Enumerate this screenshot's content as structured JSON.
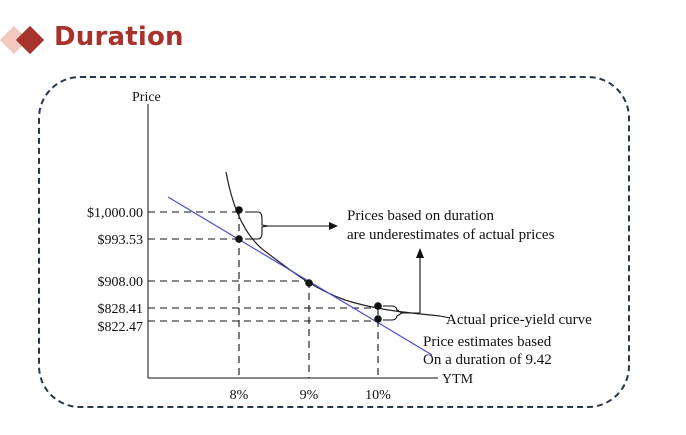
{
  "slide": {
    "title": "Duration"
  },
  "chart_data": {
    "type": "line",
    "ylabel": "Price",
    "xlabel": "YTM",
    "x_ticks": [
      "8%",
      "9%",
      "10%"
    ],
    "y_ticks": [
      "$1,000.00",
      "$993.53",
      "$908.00",
      "$828.41",
      "$822.47"
    ],
    "ylim": [
      790,
      1050
    ],
    "xlim": [
      6.8,
      11.2
    ],
    "series": [
      {
        "name": "Actual price-yield curve",
        "points": [
          [
            8,
            1000.0
          ],
          [
            9,
            908.0
          ],
          [
            10,
            828.41
          ]
        ]
      },
      {
        "name": "Price estimates based On a duration of 9.42",
        "points": [
          [
            8,
            993.53
          ],
          [
            9,
            908.0
          ],
          [
            10,
            822.47
          ]
        ]
      }
    ],
    "annotations": [
      "Prices based on duration",
      "are underestimates of actual prices",
      "Actual price-yield curve",
      "Price estimates based",
      "On a duration of 9.42"
    ],
    "colors": {
      "tangent": "#4b4bd1",
      "curve": "#222222",
      "title": "#a8322c",
      "frame": "#26374e"
    }
  }
}
